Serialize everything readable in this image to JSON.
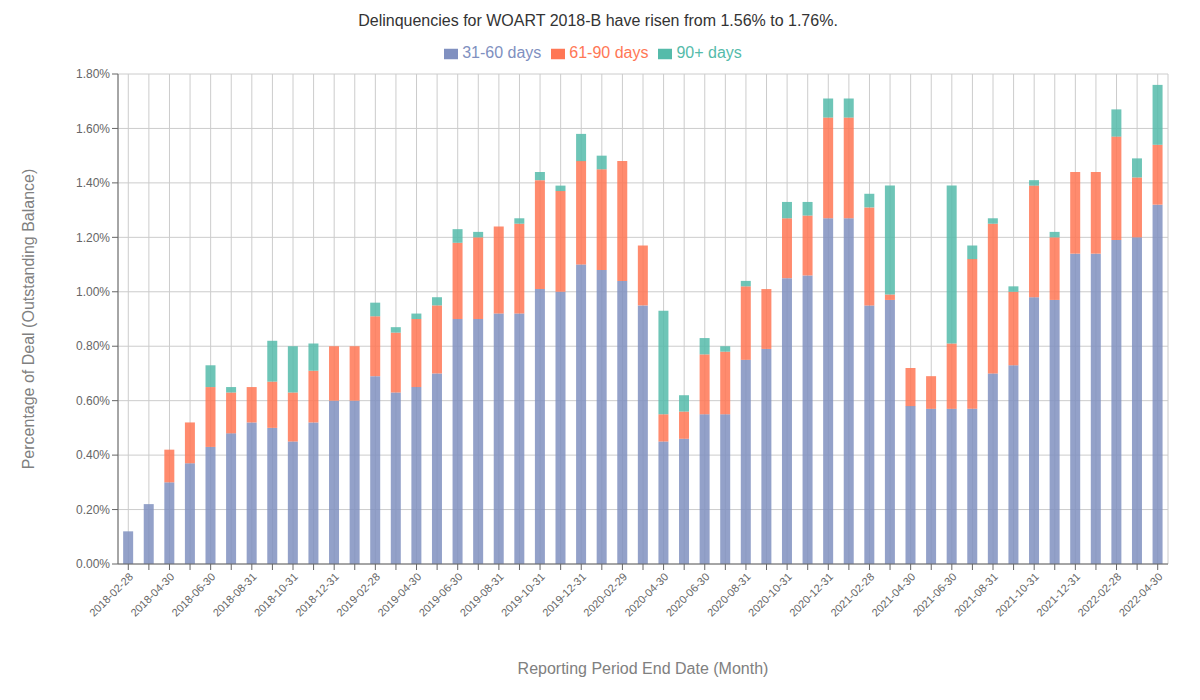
{
  "chart_data": {
    "type": "bar",
    "title": "Delinquencies for WOART 2018-B have risen from 1.56% to 1.76%.",
    "xlabel": "Reporting Period End Date (Month)",
    "ylabel": "Percentage of Deal (Outstanding Balance)",
    "categories": [
      "2018-02-28",
      null,
      "2018-04-30",
      null,
      "2018-06-30",
      null,
      "2018-08-31",
      null,
      "2018-10-31",
      null,
      "2018-12-31",
      null,
      "2019-02-28",
      null,
      "2019-04-30",
      null,
      "2019-06-30",
      null,
      "2019-08-31",
      null,
      "2019-10-31",
      null,
      "2019-12-31",
      null,
      "2020-02-29",
      null,
      "2020-04-30",
      null,
      "2020-06-30",
      null,
      "2020-08-31",
      null,
      "2020-10-31",
      null,
      "2020-12-31",
      null,
      "2021-02-28",
      null,
      "2021-04-30",
      null,
      "2021-06-30",
      null,
      "2021-08-31",
      null,
      "2021-10-31",
      null,
      "2021-12-31",
      null,
      "2022-02-28",
      null,
      "2022-04-30"
    ],
    "series": [
      {
        "name": "31-60 days",
        "color": "#8090c0",
        "values": [
          0.12,
          0.22,
          0.3,
          0.37,
          0.43,
          0.48,
          0.52,
          0.5,
          0.45,
          0.52,
          0.6,
          0.6,
          0.69,
          0.63,
          0.65,
          0.7,
          0.9,
          0.9,
          0.92,
          0.92,
          1.01,
          1.0,
          1.1,
          1.08,
          1.04,
          0.95,
          0.45,
          0.46,
          0.55,
          0.55,
          0.75,
          0.79,
          1.05,
          1.06,
          1.27,
          1.27,
          0.95,
          0.97,
          0.58,
          0.57,
          0.57,
          0.57,
          0.7,
          0.73,
          0.98,
          0.97,
          1.14,
          1.14,
          1.19,
          1.2,
          1.32
        ]
      },
      {
        "name": "61-90 days",
        "color": "#ff7755",
        "values": [
          0.0,
          0.0,
          0.12,
          0.15,
          0.22,
          0.15,
          0.13,
          0.17,
          0.18,
          0.19,
          0.2,
          0.2,
          0.22,
          0.22,
          0.25,
          0.25,
          0.28,
          0.3,
          0.32,
          0.33,
          0.4,
          0.37,
          0.38,
          0.37,
          0.44,
          0.22,
          0.1,
          0.1,
          0.22,
          0.23,
          0.27,
          0.22,
          0.22,
          0.22,
          0.37,
          0.37,
          0.36,
          0.02,
          0.14,
          0.12,
          0.24,
          0.55,
          0.55,
          0.27,
          0.41,
          0.23,
          0.3,
          0.3,
          0.38,
          0.22,
          0.22
        ]
      },
      {
        "name": "90+ days",
        "color": "#55bbaa",
        "values": [
          0.0,
          0.0,
          0.0,
          0.0,
          0.08,
          0.02,
          0.0,
          0.15,
          0.17,
          0.1,
          0.0,
          0.0,
          0.05,
          0.02,
          0.02,
          0.03,
          0.05,
          0.02,
          0.0,
          0.02,
          0.03,
          0.02,
          0.1,
          0.05,
          0.0,
          0.0,
          0.38,
          0.06,
          0.06,
          0.02,
          0.02,
          0.0,
          0.06,
          0.05,
          0.07,
          0.07,
          0.05,
          0.4,
          0.0,
          0.0,
          0.58,
          0.05,
          0.02,
          0.02,
          0.02,
          0.02,
          0.0,
          0.0,
          0.1,
          0.07,
          0.22
        ]
      }
    ],
    "ylim": [
      0,
      1.8
    ],
    "yticks": [
      {
        "value": 0,
        "label": "0.00%"
      },
      {
        "value": 0.2,
        "label": "0.20%"
      },
      {
        "value": 0.4,
        "label": "0.40%"
      },
      {
        "value": 0.6,
        "label": "0.60%"
      },
      {
        "value": 0.8,
        "label": "0.80%"
      },
      {
        "value": 1.0,
        "label": "1.00%"
      },
      {
        "value": 1.2,
        "label": "1.20%"
      },
      {
        "value": 1.4,
        "label": "1.40%"
      },
      {
        "value": 1.6,
        "label": "1.60%"
      },
      {
        "value": 1.8,
        "label": "1.80%"
      }
    ],
    "stacked": true,
    "grid": true,
    "legend": "top"
  }
}
